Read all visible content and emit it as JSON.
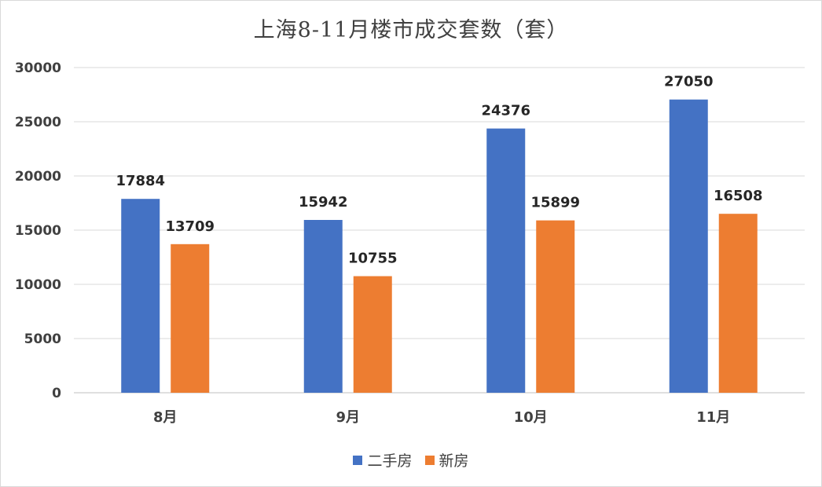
{
  "chart_data": {
    "type": "bar",
    "title": "上海8-11月楼市成交套数（套）",
    "xlabel": "",
    "ylabel": "",
    "categories": [
      "8月",
      "9月",
      "10月",
      "11月"
    ],
    "series": [
      {
        "name": "二手房",
        "values": [
          17884,
          15942,
          24376,
          27050
        ],
        "color": "#4472C4"
      },
      {
        "name": "新房",
        "values": [
          13709,
          10755,
          15899,
          16508
        ],
        "color": "#ED7D31"
      }
    ],
    "ylim": [
      0,
      30000
    ],
    "yticks": [
      0,
      5000,
      10000,
      15000,
      20000,
      25000,
      30000
    ],
    "grid": true,
    "data_labels": true,
    "legend_position": "bottom"
  }
}
